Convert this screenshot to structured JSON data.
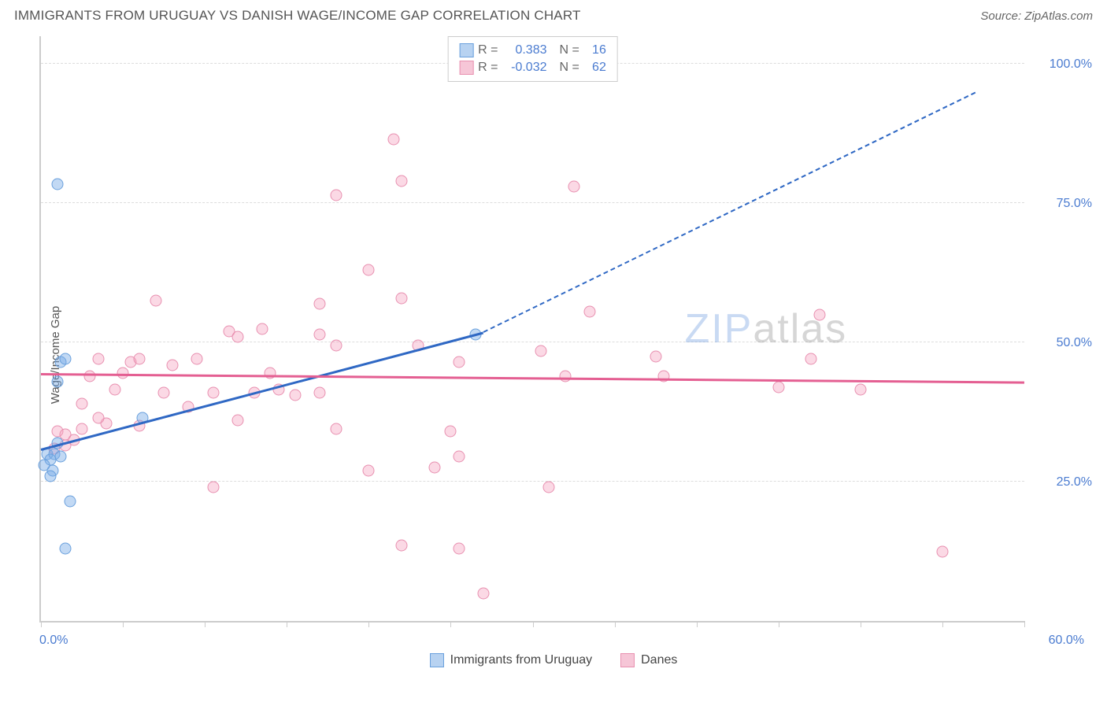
{
  "header": {
    "title": "IMMIGRANTS FROM URUGUAY VS DANISH WAGE/INCOME GAP CORRELATION CHART",
    "source_prefix": "Source: ",
    "source_name": "ZipAtlas.com"
  },
  "chart": {
    "type": "scatter",
    "ylabel": "Wage/Income Gap",
    "xlim": [
      0,
      60
    ],
    "ylim": [
      0,
      105
    ],
    "xticks": [
      0,
      5,
      10,
      15,
      20,
      25,
      30,
      35,
      40,
      45,
      50,
      55,
      60
    ],
    "xtick_labels": {
      "0": "0.0%",
      "60": "60.0%"
    },
    "yticks": [
      25,
      50,
      75,
      100
    ],
    "ytick_labels": {
      "25": "25.0%",
      "50": "50.0%",
      "75": "75.0%",
      "100": "100.0%"
    },
    "colors": {
      "axis": "#cccccc",
      "grid": "#dddddd",
      "tick_text": "#4a7bd0",
      "label_text": "#555555"
    },
    "watermark": {
      "z": "ZIP",
      "rest": "atlas"
    },
    "series": [
      {
        "key": "uruguay",
        "label": "Immigrants from Uruguay",
        "fill": "rgba(120,170,230,0.45)",
        "stroke": "#6aa0dd",
        "swatch_fill": "#b7d2f1",
        "swatch_border": "#6aa0dd",
        "trend_color": "#2f68c4",
        "R": "0.383",
        "N": "16",
        "trend": {
          "x1": 0,
          "y1": 31,
          "x2": 27,
          "y2": 52,
          "dash_x2": 57,
          "dash_y2": 95
        },
        "points": [
          [
            1.0,
            78.5
          ],
          [
            1.2,
            46.5
          ],
          [
            1.5,
            47.0
          ],
          [
            1.0,
            43.0
          ],
          [
            0.4,
            30.0
          ],
          [
            0.8,
            30.0
          ],
          [
            1.2,
            29.5
          ],
          [
            0.6,
            29.0
          ],
          [
            0.7,
            27.0
          ],
          [
            0.6,
            26.0
          ],
          [
            1.8,
            21.5
          ],
          [
            1.5,
            13.0
          ],
          [
            0.2,
            28.0
          ],
          [
            6.2,
            36.5
          ],
          [
            26.5,
            51.5
          ],
          [
            1.0,
            32.0
          ]
        ]
      },
      {
        "key": "danes",
        "label": "Danes",
        "fill": "rgba(245,160,190,0.40)",
        "stroke": "#e890b0",
        "swatch_fill": "#f6c6d7",
        "swatch_border": "#e890b0",
        "trend_color": "#e45f92",
        "R": "-0.032",
        "N": "62",
        "trend": {
          "x1": 0,
          "y1": 44.5,
          "x2": 60,
          "y2": 43.0
        },
        "points": [
          [
            21.5,
            86.5
          ],
          [
            22.0,
            79.0
          ],
          [
            18.0,
            76.5
          ],
          [
            32.5,
            78.0
          ],
          [
            20.0,
            63.0
          ],
          [
            7.0,
            57.5
          ],
          [
            17.0,
            57.0
          ],
          [
            22.0,
            58.0
          ],
          [
            33.5,
            55.5
          ],
          [
            47.5,
            55.0
          ],
          [
            11.5,
            52.0
          ],
          [
            13.5,
            52.5
          ],
          [
            12.0,
            51.0
          ],
          [
            17.0,
            51.5
          ],
          [
            18.0,
            49.5
          ],
          [
            23.0,
            49.5
          ],
          [
            30.5,
            48.5
          ],
          [
            47.0,
            47.0
          ],
          [
            25.5,
            46.5
          ],
          [
            3.5,
            47.0
          ],
          [
            5.5,
            46.5
          ],
          [
            6.0,
            47.0
          ],
          [
            8.0,
            46.0
          ],
          [
            9.5,
            47.0
          ],
          [
            3.0,
            44.0
          ],
          [
            5.0,
            44.5
          ],
          [
            32.0,
            44.0
          ],
          [
            38.0,
            44.0
          ],
          [
            37.5,
            47.5
          ],
          [
            4.5,
            41.5
          ],
          [
            7.5,
            41.0
          ],
          [
            10.5,
            41.0
          ],
          [
            13.0,
            41.0
          ],
          [
            14.5,
            41.5
          ],
          [
            15.5,
            40.5
          ],
          [
            17.0,
            41.0
          ],
          [
            50.0,
            41.5
          ],
          [
            2.5,
            39.0
          ],
          [
            12.0,
            36.0
          ],
          [
            4.0,
            35.5
          ],
          [
            6.0,
            35.0
          ],
          [
            9.0,
            38.5
          ],
          [
            18.0,
            34.5
          ],
          [
            25.0,
            34.0
          ],
          [
            1.0,
            34.0
          ],
          [
            1.5,
            33.5
          ],
          [
            2.0,
            32.5
          ],
          [
            2.5,
            34.5
          ],
          [
            25.5,
            29.5
          ],
          [
            0.8,
            31.0
          ],
          [
            1.5,
            31.5
          ],
          [
            20.0,
            27.0
          ],
          [
            24.0,
            27.5
          ],
          [
            10.5,
            24.0
          ],
          [
            31.0,
            24.0
          ],
          [
            22.0,
            13.5
          ],
          [
            25.5,
            13.0
          ],
          [
            55.0,
            12.5
          ],
          [
            27.0,
            5.0
          ],
          [
            3.5,
            36.5
          ],
          [
            14.0,
            44.5
          ],
          [
            45.0,
            42.0
          ]
        ]
      }
    ],
    "legend_top": {
      "r_label": "R =",
      "n_label": "N ="
    }
  }
}
